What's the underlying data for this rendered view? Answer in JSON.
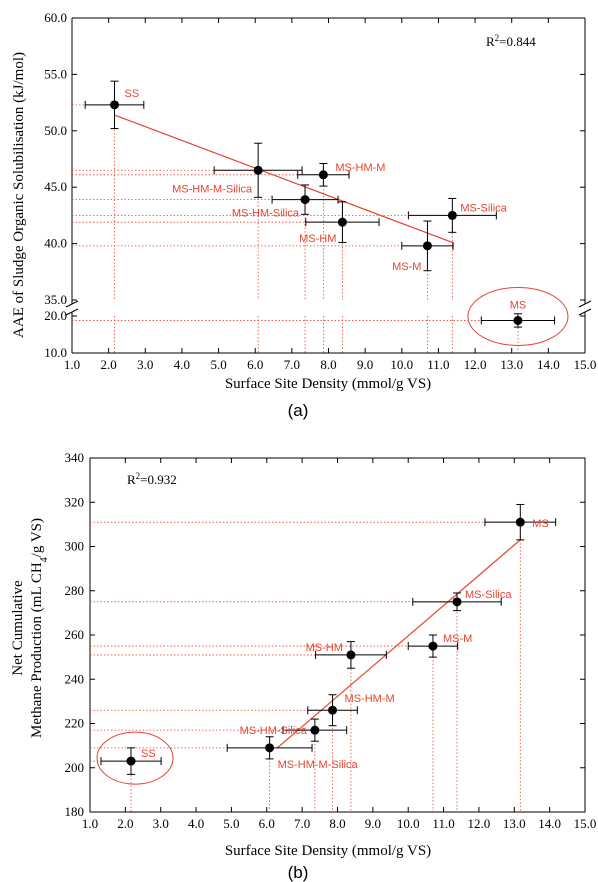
{
  "chart_data": [
    {
      "type": "scatter",
      "panel_label": "(a)",
      "xlabel": "Surface Site Density (mmol/g VS)",
      "ylabel": "AAE of Sludge Organic Solubilisation (kJ/mol)",
      "xlim": [
        1.0,
        15.0
      ],
      "x_ticks": [
        "1.0",
        "2.0",
        "3.0",
        "4.0",
        "5.0",
        "6.0",
        "7.0",
        "8.0",
        "9.0",
        "10.0",
        "11.0",
        "12.0",
        "13.0",
        "14.0",
        "15.0"
      ],
      "y_ticks_upper": [
        "35.0",
        "40.0",
        "45.0",
        "50.0",
        "55.0",
        "60.0"
      ],
      "y_ticks_lower": [
        "10.0",
        "20.0"
      ],
      "y_axis_break": [
        21.0,
        35.0
      ],
      "r2_label": "R",
      "r2_sup": "2",
      "r2_value": "=0.844",
      "points": [
        {
          "label": "SS",
          "x": 2.16,
          "y": 52.3,
          "xerr": 0.8,
          "yerr": 2.1
        },
        {
          "label": "MS-HM-M-Silica",
          "x": 6.08,
          "y": 46.5,
          "xerr": 1.2,
          "yerr": 2.4
        },
        {
          "label": "MS-HM-M",
          "x": 7.86,
          "y": 46.1,
          "xerr": 0.7,
          "yerr": 1.0
        },
        {
          "label": "MS-HM-Silica",
          "x": 7.36,
          "y": 43.9,
          "xerr": 0.9,
          "yerr": 1.3
        },
        {
          "label": "MS-HM",
          "x": 8.38,
          "y": 41.9,
          "xerr": 1.0,
          "yerr": 1.8
        },
        {
          "label": "MS-M",
          "x": 10.7,
          "y": 39.8,
          "xerr": 0.7,
          "yerr": 2.2
        },
        {
          "label": "MS-Silica",
          "x": 11.38,
          "y": 42.5,
          "xerr": 1.2,
          "yerr": 1.5
        },
        {
          "label": "MS",
          "x": 13.17,
          "y": 18.8,
          "xerr": 1.0,
          "yerr": 1.8
        }
      ],
      "fit_line": {
        "x": [
          2.16,
          11.38
        ],
        "y": [
          51.4,
          40.1
        ]
      },
      "circled": "MS"
    },
    {
      "type": "scatter",
      "panel_label": "(b)",
      "xlabel": "Surface Site Density (mmol/g VS)",
      "ylabel_line1": "Net Cumulative",
      "ylabel_line2_pre": "Methane Production (mL CH",
      "ylabel_line2_sub": "4",
      "ylabel_line2_post": "/g VS)",
      "xlim": [
        1.0,
        15.0
      ],
      "ylim": [
        180,
        340
      ],
      "x_ticks": [
        "1.0",
        "2.0",
        "3.0",
        "4.0",
        "5.0",
        "6.0",
        "7.0",
        "8.0",
        "9.0",
        "10.0",
        "11.0",
        "12.0",
        "13.0",
        "14.0",
        "15.0"
      ],
      "y_ticks": [
        "180",
        "200",
        "220",
        "240",
        "260",
        "280",
        "300",
        "320",
        "340"
      ],
      "r2_label": "R",
      "r2_sup": "2",
      "r2_value": "=0.932",
      "points": [
        {
          "label": "SS",
          "x": 2.16,
          "y": 203,
          "xerr": 0.85,
          "yerr": 6
        },
        {
          "label": "MS-HM-M-Silica",
          "x": 6.08,
          "y": 209,
          "xerr": 1.2,
          "yerr": 5
        },
        {
          "label": "MS-HM-Silica",
          "x": 7.36,
          "y": 217,
          "xerr": 0.9,
          "yerr": 5
        },
        {
          "label": "MS-HM-M",
          "x": 7.86,
          "y": 226,
          "xerr": 0.7,
          "yerr": 7
        },
        {
          "label": "MS-HM",
          "x": 8.38,
          "y": 251,
          "xerr": 1.0,
          "yerr": 6
        },
        {
          "label": "MS-M",
          "x": 10.7,
          "y": 255,
          "xerr": 0.7,
          "yerr": 5
        },
        {
          "label": "MS-Silica",
          "x": 11.38,
          "y": 275,
          "xerr": 1.25,
          "yerr": 4
        },
        {
          "label": "MS",
          "x": 13.17,
          "y": 311,
          "xerr": 1.0,
          "yerr": 8
        }
      ],
      "fit_line": {
        "x": [
          6.3,
          13.17
        ],
        "y": [
          209,
          303
        ]
      },
      "circled": "SS"
    }
  ],
  "colors": {
    "accent": "#e8432e",
    "ink": "#000000"
  }
}
